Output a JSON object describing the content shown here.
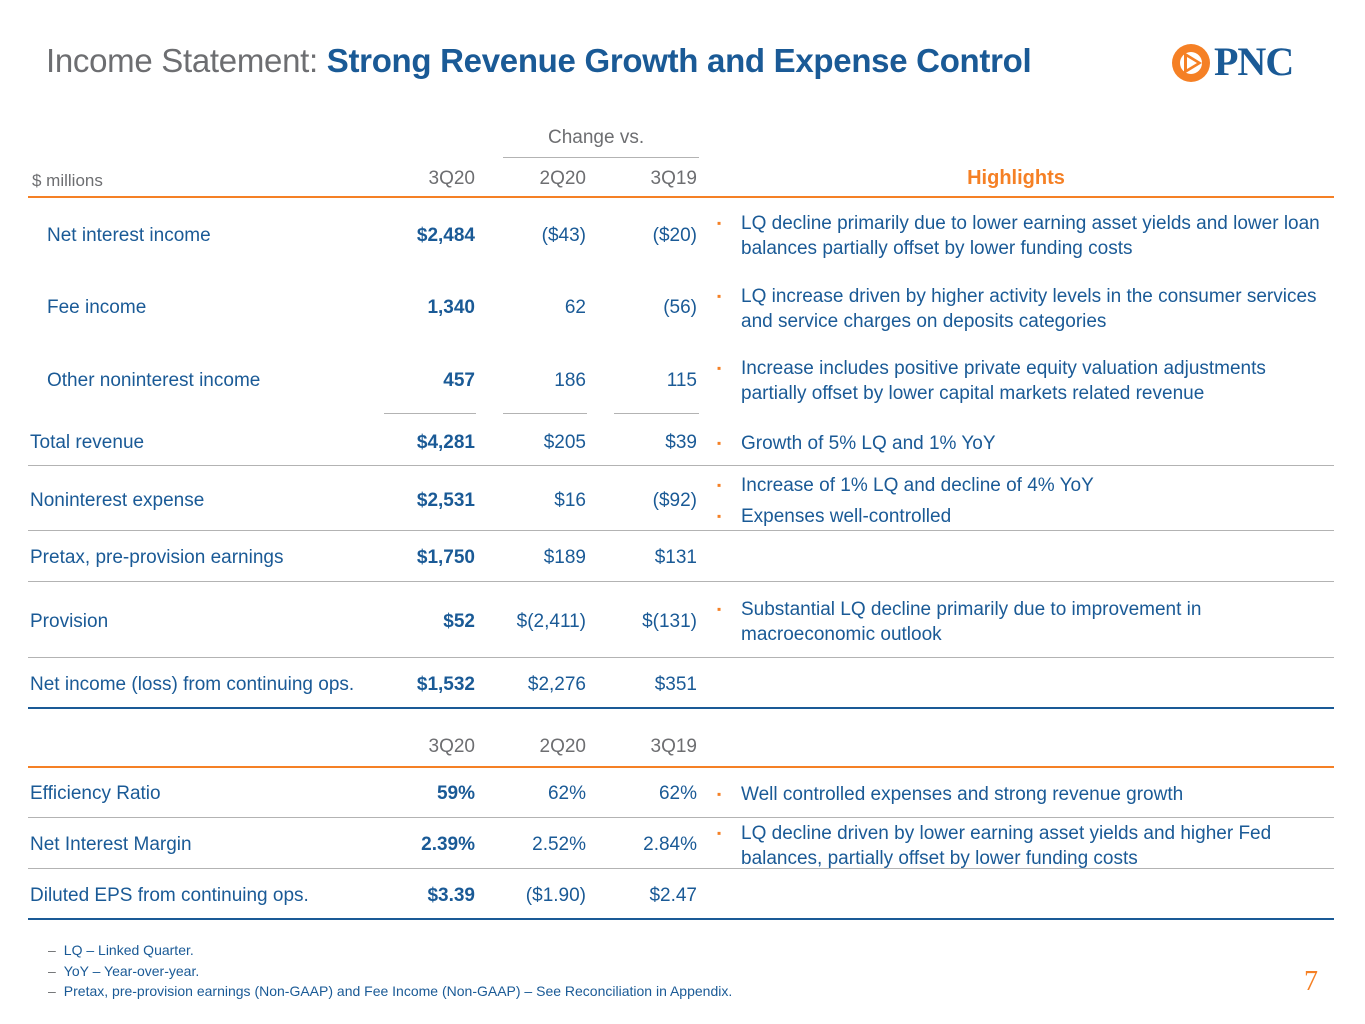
{
  "title": {
    "prefix": "Income Statement:",
    "main": "Strong Revenue Growth and Expense Control"
  },
  "logo": {
    "text": "PNC"
  },
  "header": {
    "change_vs": "Change vs.",
    "units": "$ millions",
    "col1": "3Q20",
    "col2": "2Q20",
    "col3": "3Q19",
    "highlights": "Highlights"
  },
  "rows": [
    {
      "label": "Net interest income",
      "v1": "$2,484",
      "v2": "($43)",
      "v3": "($20)",
      "hl": [
        "LQ decline primarily due to lower earning asset yields and lower loan balances partially offset by lower funding costs"
      ]
    },
    {
      "label": "Fee income",
      "v1": "1,340",
      "v2": "62",
      "v3": "(56)",
      "hl": [
        "LQ increase driven by higher activity levels in the consumer services and service charges on deposits categories"
      ]
    },
    {
      "label": "Other noninterest income",
      "v1": "457",
      "v2": "186",
      "v3": "115",
      "hl": [
        "Increase includes positive private equity valuation adjustments partially offset by lower capital markets related revenue"
      ]
    },
    {
      "label": "Total revenue",
      "v1": "$4,281",
      "v2": "$205",
      "v3": "$39",
      "hl": [
        "Growth of 5% LQ and 1% YoY"
      ]
    },
    {
      "label": "Noninterest expense",
      "v1": "$2,531",
      "v2": "$16",
      "v3": "($92)",
      "hl": [
        "Increase of 1% LQ and decline of 4% YoY",
        "Expenses well-controlled"
      ]
    },
    {
      "label": "Pretax, pre-provision earnings",
      "v1": "$1,750",
      "v2": "$189",
      "v3": "$131",
      "hl": []
    },
    {
      "label": "Provision",
      "v1": "$52",
      "v2": "$(2,411)",
      "v3": "$(131)",
      "hl": [
        "Substantial LQ decline primarily due to improvement in macroeconomic outlook"
      ]
    },
    {
      "label": "Net income (loss) from continuing ops.",
      "v1": "$1,532",
      "v2": "$2,276",
      "v3": "$351",
      "hl": []
    }
  ],
  "header2": {
    "col1": "3Q20",
    "col2": "2Q20",
    "col3": "3Q19"
  },
  "ratios": [
    {
      "label": "Efficiency Ratio",
      "v1": "59%",
      "v2": "62%",
      "v3": "62%",
      "hl": [
        "Well controlled expenses and strong revenue growth"
      ]
    },
    {
      "label": "Net Interest Margin",
      "v1": "2.39%",
      "v2": "2.52%",
      "v3": "2.84%",
      "hl": [
        "LQ decline driven by lower earning asset yields and higher Fed balances, partially offset by lower funding costs"
      ]
    },
    {
      "label": "Diluted EPS from continuing ops.",
      "v1": "$3.39",
      "v2": "($1.90)",
      "v3": "$2.47",
      "hl": []
    }
  ],
  "footnotes": [
    "LQ – Linked Quarter.",
    "YoY – Year-over-year.",
    "Pretax, pre-provision earnings (Non-GAAP) and Fee Income (Non-GAAP) – See Reconciliation in Appendix."
  ],
  "footnote_dash": "–",
  "bullet_glyph": "▪",
  "page_number": "7",
  "colors": {
    "brand_blue": "#1a5a96",
    "accent_orange": "#f58025",
    "gray_text": "#6d6e71"
  }
}
